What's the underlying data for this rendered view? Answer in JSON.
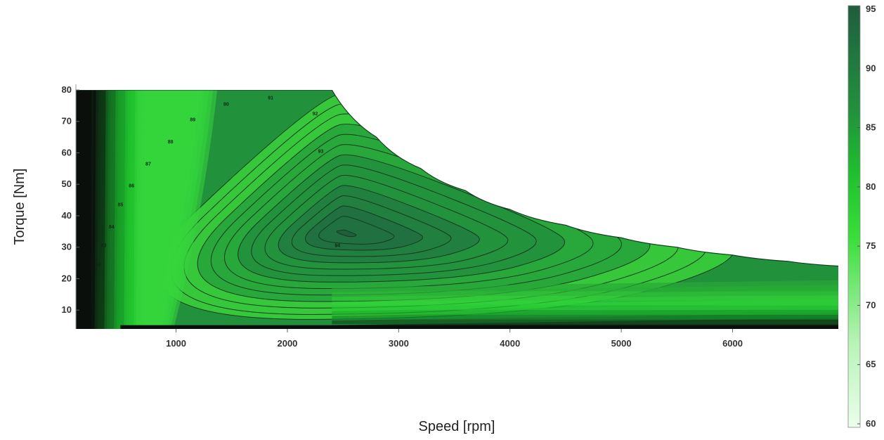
{
  "chart_data": {
    "type": "contour",
    "xlabel": "Speed [rpm]",
    "ylabel": "Torque [Nm]",
    "xlim": [
      100,
      6950
    ],
    "ylim": [
      4,
      80
    ],
    "xticks": [
      1000,
      2000,
      3000,
      4000,
      5000,
      6000
    ],
    "yticks": [
      10,
      20,
      30,
      40,
      50,
      60,
      70,
      80
    ],
    "colorbar": {
      "range": [
        60,
        95
      ],
      "ticks": [
        60,
        65,
        70,
        75,
        80,
        85,
        90,
        95
      ],
      "colors": [
        "#eaffea",
        "#bff5bf",
        "#79e879",
        "#2ed82e",
        "#1fb52f",
        "#22913c",
        "#217740",
        "#1f5c3c"
      ]
    },
    "peak": {
      "speed": 2500,
      "torque": 34,
      "efficiency": 95
    },
    "contour_levels": [
      {
        "efficiency": 94,
        "label": "94",
        "label_at": [
          2450,
          30
        ]
      },
      {
        "efficiency": 93,
        "label": "93",
        "label_at": [
          2300,
          60
        ]
      },
      {
        "efficiency": 92,
        "label": "92",
        "label_at": [
          2250,
          72
        ]
      },
      {
        "efficiency": 91,
        "label": "91",
        "label_at": [
          1850,
          77
        ]
      },
      {
        "efficiency": 90,
        "label": "90",
        "label_at": [
          1450,
          75
        ]
      },
      {
        "efficiency": 89,
        "label": "89",
        "label_at": [
          1150,
          70
        ]
      },
      {
        "efficiency": 88,
        "label": "88",
        "label_at": [
          950,
          63
        ]
      },
      {
        "efficiency": 87,
        "label": "87",
        "label_at": [
          750,
          56
        ]
      },
      {
        "efficiency": 86,
        "label": "86",
        "label_at": [
          600,
          49
        ]
      },
      {
        "efficiency": 85,
        "label": "85",
        "label_at": [
          500,
          43
        ]
      },
      {
        "efficiency": 84,
        "label": "84",
        "label_at": [
          420,
          36
        ]
      },
      {
        "efficiency": 83,
        "label": "83",
        "label_at": [
          350,
          30
        ]
      },
      {
        "efficiency": 82,
        "label": "82",
        "label_at": [
          300,
          24
        ]
      }
    ],
    "torque_limit": {
      "flat_torque": 80,
      "corner_speed": 2400,
      "points": [
        [
          2400,
          80
        ],
        [
          2800,
          65
        ],
        [
          3200,
          55
        ],
        [
          3600,
          48
        ],
        [
          4000,
          42
        ],
        [
          4500,
          37
        ],
        [
          5000,
          33
        ],
        [
          5500,
          30
        ],
        [
          6000,
          27.5
        ],
        [
          6500,
          25.5
        ],
        [
          6950,
          24
        ]
      ]
    }
  }
}
